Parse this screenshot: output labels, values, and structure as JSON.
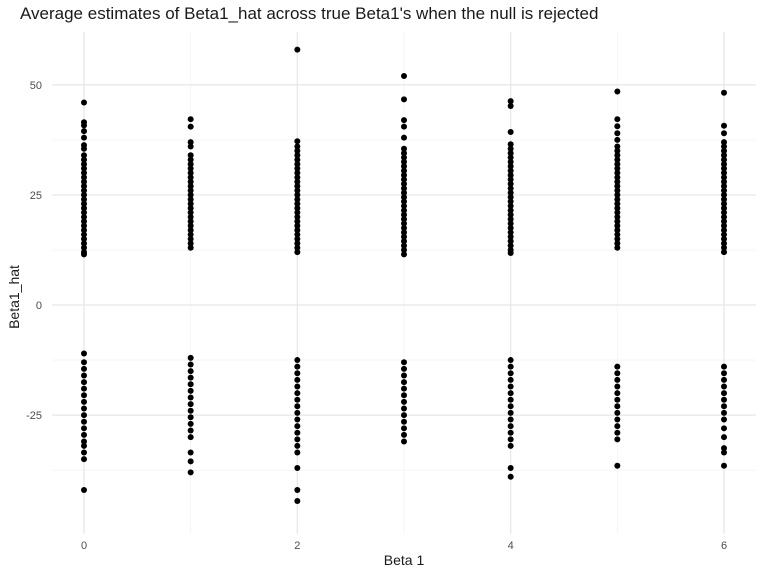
{
  "chart_data": {
    "type": "scatter",
    "title": "Average estimates of Beta1_hat across true Beta1's when the null is rejected",
    "xlabel": "Beta 1",
    "ylabel": "Beta1_hat",
    "xlim": [
      -0.3,
      6.3
    ],
    "ylim": [
      -52,
      62
    ],
    "x_ticks": [
      0,
      2,
      4,
      6
    ],
    "x_tick_labels": [
      "0",
      "2",
      "4",
      "6"
    ],
    "y_ticks": [
      -25,
      0,
      25,
      50
    ],
    "y_tick_labels": [
      "-25",
      "0",
      "25",
      "50"
    ],
    "grid": true,
    "legend": "none",
    "point_color": "#000000",
    "points_by_x": [
      {
        "x": 0,
        "y": [
          46.0,
          41.5,
          40.8,
          39.5,
          38.0,
          36.3,
          35.5,
          34.0,
          33.0,
          32.0,
          31.0,
          30.0,
          29.0,
          28.0,
          27.0,
          26.0,
          25.0,
          24.0,
          23.0,
          22.0,
          21.0,
          20.0,
          19.0,
          18.0,
          17.0,
          16.0,
          15.0,
          14.0,
          13.0,
          12.0,
          11.5,
          -11.0,
          -13.0,
          -14.5,
          -16.0,
          -17.5,
          -19.0,
          -20.5,
          -22.0,
          -23.5,
          -25.0,
          -26.5,
          -28.0,
          -29.5,
          -31.0,
          -32.0,
          -33.5,
          -35.0,
          -42.0
        ]
      },
      {
        "x": 1,
        "y": [
          42.2,
          40.5,
          37.0,
          36.0,
          34.0,
          33.0,
          32.0,
          31.0,
          30.0,
          29.0,
          28.0,
          27.0,
          26.0,
          25.0,
          24.0,
          23.0,
          22.0,
          21.0,
          20.0,
          19.0,
          18.0,
          17.0,
          16.0,
          15.0,
          14.0,
          13.0,
          -12.0,
          -13.5,
          -15.0,
          -16.5,
          -18.0,
          -19.5,
          -21.0,
          -22.5,
          -24.0,
          -25.5,
          -27.0,
          -28.5,
          -30.0,
          -33.5,
          -35.5,
          -38.0
        ]
      },
      {
        "x": 2,
        "y": [
          58.0,
          37.2,
          36.0,
          35.0,
          34.0,
          33.0,
          32.0,
          31.0,
          30.0,
          29.0,
          28.0,
          27.0,
          26.0,
          25.0,
          24.0,
          23.0,
          22.0,
          21.0,
          20.0,
          19.0,
          18.0,
          17.0,
          16.0,
          15.0,
          14.0,
          13.0,
          12.0,
          -12.5,
          -14.0,
          -15.5,
          -17.0,
          -18.5,
          -20.0,
          -21.5,
          -23.0,
          -24.5,
          -26.0,
          -27.5,
          -29.0,
          -30.5,
          -32.0,
          -33.5,
          -37.0,
          -42.0,
          -44.5
        ]
      },
      {
        "x": 3,
        "y": [
          52.0,
          46.7,
          42.0,
          40.5,
          38.0,
          35.5,
          34.5,
          33.5,
          32.5,
          31.5,
          30.5,
          29.5,
          28.5,
          27.5,
          26.5,
          25.5,
          24.5,
          23.5,
          22.5,
          21.5,
          20.5,
          19.5,
          18.5,
          17.5,
          16.5,
          15.5,
          14.5,
          13.5,
          12.5,
          11.5,
          -13.0,
          -14.5,
          -16.0,
          -17.5,
          -19.0,
          -20.5,
          -22.0,
          -23.5,
          -25.0,
          -26.5,
          -28.0,
          -29.5,
          -31.0
        ]
      },
      {
        "x": 4,
        "y": [
          46.3,
          45.2,
          39.3,
          36.5,
          35.5,
          34.5,
          33.5,
          32.5,
          31.5,
          30.5,
          29.5,
          28.5,
          27.5,
          26.5,
          25.5,
          24.5,
          23.5,
          22.5,
          21.5,
          20.5,
          19.5,
          18.5,
          17.5,
          16.5,
          15.5,
          14.5,
          13.5,
          12.5,
          11.8,
          -12.5,
          -14.0,
          -15.5,
          -17.0,
          -18.5,
          -20.0,
          -21.5,
          -23.0,
          -24.5,
          -26.0,
          -27.5,
          -29.0,
          -30.5,
          -32.0,
          -37.0,
          -39.0
        ]
      },
      {
        "x": 5,
        "y": [
          48.5,
          42.2,
          40.6,
          39.0,
          37.5,
          36.0,
          35.0,
          34.0,
          33.0,
          32.0,
          31.0,
          30.0,
          29.0,
          28.0,
          27.0,
          26.0,
          25.0,
          24.0,
          23.0,
          22.0,
          21.0,
          20.0,
          19.0,
          18.0,
          17.0,
          16.0,
          15.0,
          14.0,
          13.0,
          -14.0,
          -15.5,
          -17.0,
          -18.5,
          -20.0,
          -21.5,
          -23.0,
          -24.5,
          -26.0,
          -27.5,
          -29.0,
          -30.5,
          -36.5
        ]
      },
      {
        "x": 6,
        "y": [
          48.2,
          40.7,
          39.0,
          37.0,
          36.0,
          35.0,
          34.0,
          33.0,
          32.0,
          31.0,
          30.0,
          29.0,
          28.0,
          27.0,
          26.0,
          25.0,
          24.0,
          23.0,
          22.0,
          21.0,
          20.0,
          19.0,
          18.0,
          17.0,
          16.0,
          15.0,
          14.0,
          13.0,
          12.0,
          -14.0,
          -15.5,
          -17.0,
          -18.5,
          -20.0,
          -21.5,
          -23.0,
          -24.5,
          -26.0,
          -28.0,
          -30.0,
          -32.5,
          -33.5,
          -36.5
        ]
      }
    ]
  }
}
